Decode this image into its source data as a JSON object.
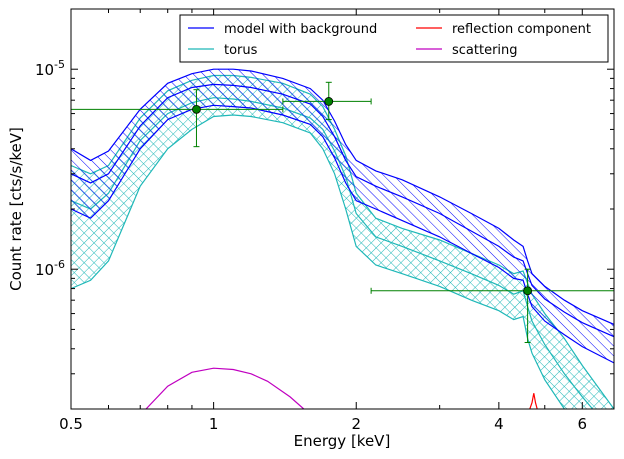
{
  "chart_data": {
    "type": "line",
    "xlabel": "Energy [keV]",
    "ylabel": "Count rate [cts/s/keV]",
    "xscale": "log",
    "yscale": "log",
    "xlim": [
      0.5,
      7.0
    ],
    "ylim": [
      2e-07,
      2e-05
    ],
    "grid": false,
    "legend_position": "top-right",
    "x_ticks": [
      {
        "value": 0.5,
        "label": "0.5"
      },
      {
        "value": 1,
        "label": "1"
      },
      {
        "value": 2,
        "label": "2"
      },
      {
        "value": 4,
        "label": "4"
      },
      {
        "value": 6,
        "label": "6"
      }
    ],
    "y_ticks": [
      {
        "value": 1e-06,
        "base": "10",
        "exp": "-6"
      },
      {
        "value": 1e-05,
        "base": "10",
        "exp": "-5"
      }
    ],
    "legend": [
      {
        "label": "model with background",
        "color": "#0000ff"
      },
      {
        "label": "reflection component",
        "color": "#ff0000"
      },
      {
        "label": "torus",
        "color": "#1fb8b8"
      },
      {
        "label": "scattering",
        "color": "#c000c0"
      }
    ],
    "series": [
      {
        "name": "model with background",
        "color": "#0000ff",
        "x": [
          0.5,
          0.55,
          0.6,
          0.7,
          0.8,
          0.9,
          1.0,
          1.1,
          1.2,
          1.4,
          1.6,
          1.7,
          1.8,
          1.9,
          2.0,
          2.2,
          2.5,
          3.0,
          3.5,
          4.0,
          4.3,
          4.5,
          4.6,
          4.7,
          5.0,
          5.5,
          6.0,
          7.0
        ],
        "upper": [
          4e-06,
          3.5e-06,
          3.9e-06,
          6.3e-06,
          8.5e-06,
          9.5e-06,
          1e-05,
          1e-05,
          9.8e-06,
          9e-06,
          8e-06,
          7e-06,
          5.5e-06,
          4.2e-06,
          3.5e-06,
          3.1e-06,
          2.8e-06,
          2.3e-06,
          1.9e-06,
          1.6e-06,
          1.4e-06,
          1.3e-06,
          1.1e-06,
          9.5e-07,
          8.2e-07,
          7e-07,
          6.2e-07,
          5.3e-07
        ],
        "center": [
          3e-06,
          2.7e-06,
          3e-06,
          5.2e-06,
          7.2e-06,
          8.1e-06,
          8.4e-06,
          8.3e-06,
          8.1e-06,
          7.5e-06,
          6.7e-06,
          5.8e-06,
          4.6e-06,
          3.5e-06,
          2.9e-06,
          2.6e-06,
          2.3e-06,
          1.9e-06,
          1.55e-06,
          1.3e-06,
          1.15e-06,
          1.1e-06,
          9.5e-07,
          8.3e-07,
          7.1e-07,
          6.1e-07,
          5.4e-07,
          4.6e-07
        ],
        "lower": [
          2e-06,
          1.8e-06,
          2.2e-06,
          4e-06,
          5.6e-06,
          6.3e-06,
          6.6e-06,
          6.5e-06,
          6.4e-06,
          5.9e-06,
          5.3e-06,
          4.6e-06,
          3.6e-06,
          2.7e-06,
          2.2e-06,
          2e-06,
          1.75e-06,
          1.45e-06,
          1.2e-06,
          1.02e-06,
          9e-07,
          8.8e-07,
          7.5e-07,
          6.5e-07,
          5.5e-07,
          4.7e-07,
          4.1e-07,
          3.4e-07
        ]
      },
      {
        "name": "torus",
        "color": "#1fb8b8",
        "x": [
          0.5,
          0.55,
          0.6,
          0.7,
          0.8,
          0.9,
          1.0,
          1.1,
          1.2,
          1.4,
          1.6,
          1.7,
          1.8,
          1.9,
          2.0,
          2.2,
          2.5,
          3.0,
          3.5,
          4.0,
          4.3,
          4.5,
          4.6,
          4.7,
          5.0,
          5.5,
          6.0,
          7.0
        ],
        "upper": [
          3.3e-06,
          3e-06,
          3.3e-06,
          5.7e-06,
          7.8e-06,
          8.8e-06,
          9.3e-06,
          9.3e-06,
          9.1e-06,
          8.5e-06,
          7.5e-06,
          6.5e-06,
          5e-06,
          3.7e-06,
          2.4e-06,
          1.8e-06,
          1.6e-06,
          1.4e-06,
          1.2e-06,
          1.05e-06,
          9.5e-07,
          9.8e-07,
          8.5e-07,
          7.5e-07,
          6e-07,
          4.5e-07,
          3.3e-07,
          2e-07
        ],
        "center": [
          2.2e-06,
          2e-06,
          2.4e-06,
          4.4e-06,
          6e-06,
          6.8e-06,
          7.2e-06,
          7.1e-06,
          6.9e-06,
          6.4e-06,
          5.7e-06,
          5e-06,
          3.9e-06,
          2.9e-06,
          1.9e-06,
          1.45e-06,
          1.3e-06,
          1.1e-06,
          9.5e-07,
          8.3e-07,
          7.5e-07,
          7.8e-07,
          6.5e-07,
          5.5e-07,
          4.2e-07,
          3e-07,
          2.3e-07,
          1.5e-07
        ],
        "lower": [
          8e-07,
          8.8e-07,
          1.1e-06,
          2.6e-06,
          4e-06,
          5e-06,
          5.8e-06,
          5.9e-06,
          5.8e-06,
          5.4e-06,
          4.8e-06,
          4e-06,
          3e-06,
          2e-06,
          1.3e-06,
          1.05e-06,
          9.5e-07,
          8.2e-07,
          7e-07,
          6.2e-07,
          5.6e-07,
          5.8e-07,
          4.5e-07,
          3.8e-07,
          2.8e-07,
          2e-07,
          1.6e-07,
          1.2e-07
        ]
      },
      {
        "name": "scattering",
        "color": "#c000c0",
        "x": [
          0.72,
          0.8,
          0.9,
          1.0,
          1.1,
          1.2,
          1.3,
          1.45,
          1.55
        ],
        "y": [
          2e-07,
          2.6e-07,
          3.05e-07,
          3.2e-07,
          3.15e-07,
          3e-07,
          2.75e-07,
          2.3e-07,
          2e-07
        ]
      },
      {
        "name": "reflection component",
        "color": "#ff0000",
        "x": [
          4.65,
          4.7,
          4.74,
          4.78,
          4.82
        ],
        "y": [
          2e-07,
          2.15e-07,
          2.4e-07,
          2.15e-07,
          2e-07
        ]
      }
    ],
    "data_points": {
      "color": "#008000",
      "points": [
        {
          "x": 0.92,
          "y": 6.3e-06,
          "xlo": 0.5,
          "xhi": 1.4,
          "ylo": 4.1e-06,
          "yhi": 7.9e-06
        },
        {
          "x": 1.75,
          "y": 6.9e-06,
          "xlo": 1.4,
          "xhi": 2.15,
          "ylo": 5.6e-06,
          "yhi": 8.6e-06
        },
        {
          "x": 4.6,
          "y": 7.8e-07,
          "xlo": 2.15,
          "xhi": 7.0,
          "ylo": 4.3e-07,
          "yhi": 1e-06
        }
      ]
    }
  }
}
